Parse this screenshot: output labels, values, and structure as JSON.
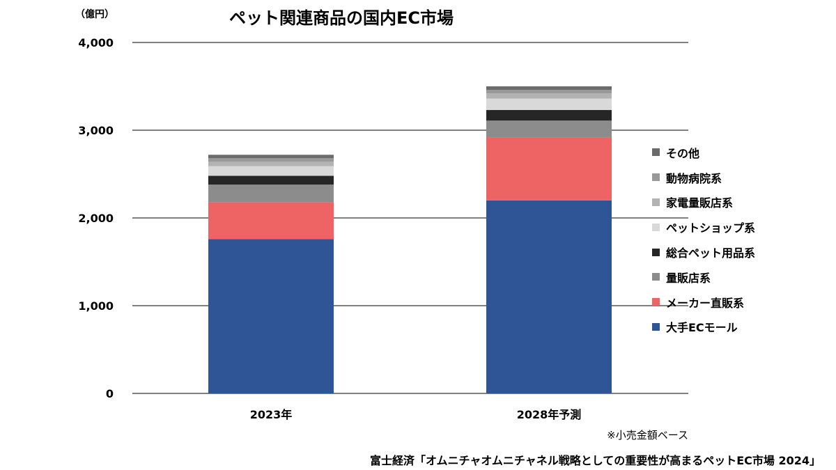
{
  "title": "ペット関連商品の国内EC市場",
  "unit_label": "（億円）",
  "note": "※小売金額ベース",
  "source": "富士経済「オムニチャオムニチャネル戦略としての重要性が高まるペットEC市場 2024」",
  "chart_data": {
    "type": "bar",
    "stacked": true,
    "title": "ペット関連商品の国内EC市場",
    "ylabel": "（億円）",
    "ylim": [
      0,
      4000
    ],
    "yticks": [
      0,
      1000,
      2000,
      3000,
      4000
    ],
    "ytick_labels": [
      "0",
      "1,000",
      "2,000",
      "3,000",
      "4,000"
    ],
    "categories": [
      "2023年",
      "2028年予測"
    ],
    "grid": true,
    "legend_position": "right",
    "series": [
      {
        "name": "大手ECモール",
        "color": "#2f5597",
        "values": [
          1760,
          2200
        ]
      },
      {
        "name": "メーカー直販系",
        "color": "#ee6363",
        "values": [
          420,
          720
        ]
      },
      {
        "name": "量販店系",
        "color": "#8c8c8c",
        "values": [
          200,
          190
        ]
      },
      {
        "name": "総合ペット用品系",
        "color": "#262626",
        "values": [
          100,
          120
        ]
      },
      {
        "name": "ペットショップ系",
        "color": "#d9d9d9",
        "values": [
          110,
          130
        ]
      },
      {
        "name": "家電量販店系",
        "color": "#b3b3b3",
        "values": [
          50,
          60
        ]
      },
      {
        "name": "動物病院系",
        "color": "#999999",
        "values": [
          40,
          40
        ]
      },
      {
        "name": "その他",
        "color": "#6b6b6b",
        "values": [
          40,
          40
        ]
      }
    ]
  }
}
